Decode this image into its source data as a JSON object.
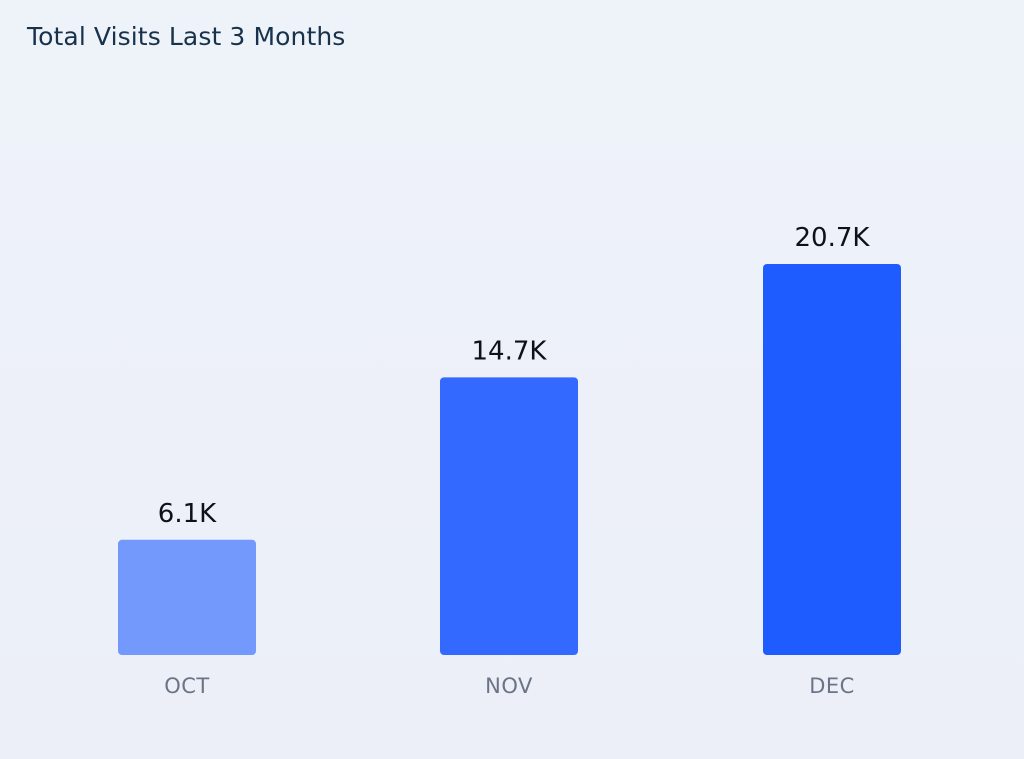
{
  "chart_data": {
    "type": "bar",
    "title": "Total Visits Last 3 Months",
    "categories": [
      "OCT",
      "NOV",
      "DEC"
    ],
    "values": [
      6100,
      14700,
      20700
    ],
    "value_labels": [
      "6.1K",
      "14.7K",
      "20.7K"
    ],
    "bar_colors": [
      "#7399fd",
      "#3369fe",
      "#1f5cff"
    ],
    "label_color": "#0e1116",
    "category_color": "#6b7486",
    "title_color": "#17324a",
    "ylim": [
      0,
      20700
    ],
    "grid": false,
    "legend": "none"
  }
}
